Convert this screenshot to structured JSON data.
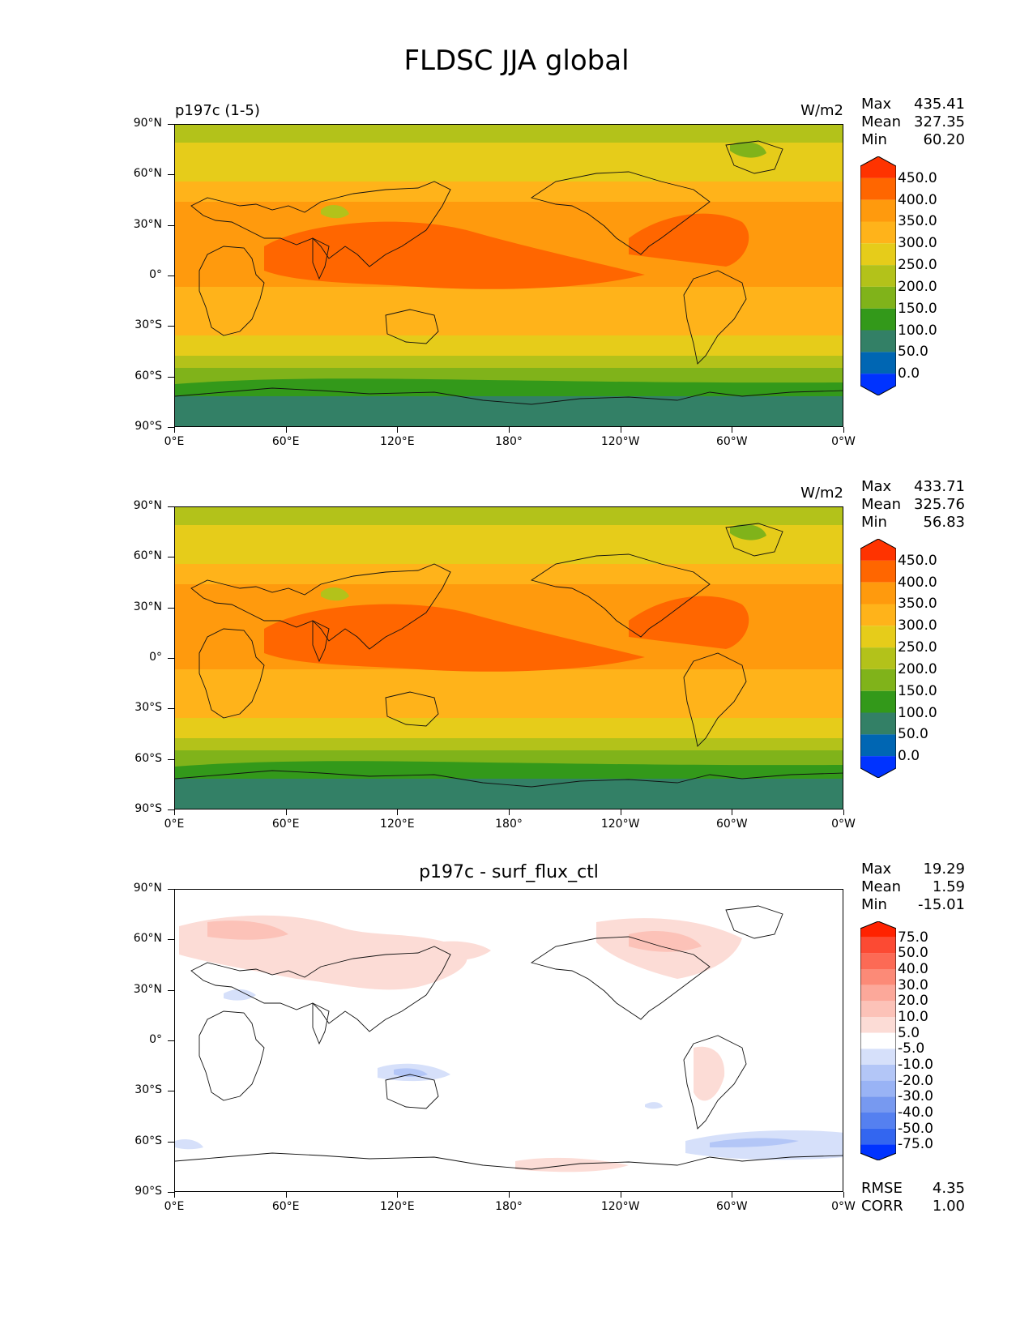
{
  "title": "FLDSC JJA global",
  "axes": {
    "lat_labels": [
      "90°N",
      "60°N",
      "30°N",
      "0°",
      "30°S",
      "60°S",
      "90°S"
    ],
    "lon_labels": [
      "0°E",
      "60°E",
      "120°E",
      "180°",
      "120°W",
      "60°W",
      "0°W"
    ]
  },
  "panels": [
    {
      "left_title": "p197c (1-5)",
      "right_title": "W/m2",
      "center_title": "",
      "stats": [
        {
          "label": "Max",
          "value": "435.41"
        },
        {
          "label": "Mean",
          "value": "327.35"
        },
        {
          "label": "Min",
          "value": "60.20"
        }
      ],
      "colorbar": {
        "colors": [
          "#0033ff",
          "#0066b3",
          "#338066",
          "#33991a",
          "#80b31a",
          "#b3c21a",
          "#e6cc1a",
          "#ffb31a",
          "#ff9a0d",
          "#ff6600",
          "#ff3300"
        ],
        "labels": [
          "450.0",
          "400.0",
          "350.0",
          "300.0",
          "250.0",
          "200.0",
          "150.0",
          "100.0",
          "50.0",
          "0.0"
        ]
      }
    },
    {
      "left_title": "",
      "right_title": "W/m2",
      "center_title": "",
      "stats": [
        {
          "label": "Max",
          "value": "433.71"
        },
        {
          "label": "Mean",
          "value": "325.76"
        },
        {
          "label": "Min",
          "value": "56.83"
        }
      ],
      "colorbar": {
        "colors": [
          "#0033ff",
          "#0066b3",
          "#338066",
          "#33991a",
          "#80b31a",
          "#b3c21a",
          "#e6cc1a",
          "#ffb31a",
          "#ff9a0d",
          "#ff6600",
          "#ff3300"
        ],
        "labels": [
          "450.0",
          "400.0",
          "350.0",
          "300.0",
          "250.0",
          "200.0",
          "150.0",
          "100.0",
          "50.0",
          "0.0"
        ]
      }
    },
    {
      "left_title": "",
      "right_title": "",
      "center_title": "p197c - surf_flux_ctl",
      "stats": [
        {
          "label": "Max",
          "value": "19.29"
        },
        {
          "label": "Mean",
          "value": "1.59"
        },
        {
          "label": "Min",
          "value": "-15.01"
        }
      ],
      "bottom_stats": [
        {
          "label": "RMSE",
          "value": "4.35"
        },
        {
          "label": "CORR",
          "value": "1.00"
        }
      ],
      "colorbar": {
        "colors": [
          "#0033ff",
          "#3366f0",
          "#5580f0",
          "#7799f0",
          "#99b3f5",
          "#b3c6f7",
          "#d6e0fa",
          "#ffffff",
          "#fcdcd6",
          "#fcc2b8",
          "#fca89a",
          "#fc8a77",
          "#fc6a55",
          "#fc4a33",
          "#ff2200"
        ],
        "labels": [
          "75.0",
          "50.0",
          "40.0",
          "30.0",
          "20.0",
          "10.0",
          "5.0",
          "-5.0",
          "-10.0",
          "-20.0",
          "-30.0",
          "-40.0",
          "-50.0",
          "-75.0"
        ]
      }
    }
  ]
}
